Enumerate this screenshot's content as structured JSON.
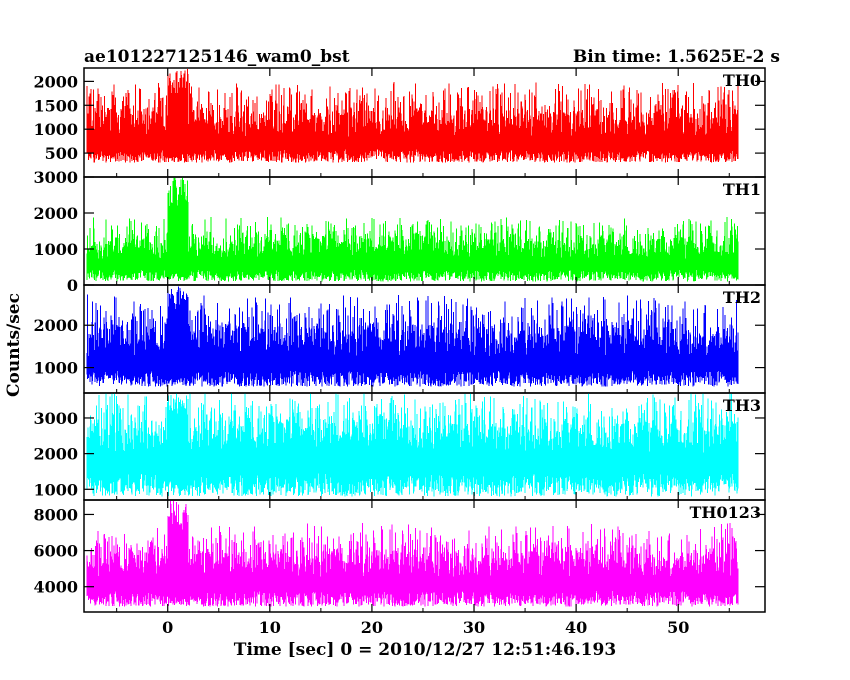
{
  "header": {
    "title": "ae101227125146_wam0_bst",
    "bin_time": "Bin time: 1.5625E-2 s"
  },
  "chart_data": {
    "type": "line",
    "title": "ae101227125146_wam0_bst",
    "subtitle": "Bin time: 1.5625E-2 s",
    "xlabel": "Time [sec] 0 = 2010/12/27 12:51:46.193",
    "ylabel": "Counts/sec",
    "xlim": [
      -8.2,
      58.5
    ],
    "x_ticks": [
      0,
      10,
      20,
      30,
      40,
      50
    ],
    "x_tick_labels": [
      "0",
      "10",
      "20",
      "30",
      "40",
      "50"
    ],
    "x_data_range": [
      -7.9,
      55.9
    ],
    "bin_time": 0.015625,
    "grid": false,
    "legend": "none",
    "panels": [
      {
        "name": "TH0",
        "color": "#ff0000",
        "ylim": [
          0,
          2280
        ],
        "y_ticks": [
          500,
          1000,
          1500,
          2000
        ],
        "y_tick_labels": [
          "500",
          "1000",
          "1500",
          "2000"
        ],
        "mean": 820,
        "noise_low": 300,
        "noise_high": 1900,
        "burst_time": [
          0,
          2
        ],
        "burst_peak": 2280
      },
      {
        "name": "TH1",
        "color": "#00ff00",
        "ylim": [
          0,
          3000
        ],
        "y_ticks": [
          0,
          1000,
          2000,
          3000
        ],
        "y_tick_labels": [
          "0",
          "1000",
          "2000",
          "3000"
        ],
        "mean": 700,
        "noise_low": 100,
        "noise_high": 1800,
        "burst_time": [
          0,
          2
        ],
        "burst_peak": 3000
      },
      {
        "name": "TH2",
        "color": "#0000ff",
        "ylim": [
          400,
          2950
        ],
        "y_ticks": [
          1000,
          2000
        ],
        "y_tick_labels": [
          "1000",
          "2000"
        ],
        "mean": 1250,
        "noise_low": 550,
        "noise_high": 2600,
        "burst_time": [
          0,
          2
        ],
        "burst_peak": 2950
      },
      {
        "name": "TH3",
        "color": "#00ffff",
        "ylim": [
          700,
          3700
        ],
        "y_ticks": [
          1000,
          2000,
          3000
        ],
        "y_tick_labels": [
          "1000",
          "2000",
          "3000"
        ],
        "mean": 2000,
        "noise_low": 800,
        "noise_high": 3600,
        "burst_time": [
          0,
          2
        ],
        "burst_peak": 3700
      },
      {
        "name": "TH0123",
        "color": "#ff00ff",
        "ylim": [
          2600,
          8800
        ],
        "y_ticks": [
          4000,
          6000,
          8000
        ],
        "y_tick_labels": [
          "4000",
          "6000",
          "8000"
        ],
        "mean": 4500,
        "noise_low": 2900,
        "noise_high": 7200,
        "burst_time": [
          0,
          2
        ],
        "burst_peak": 8800
      }
    ]
  }
}
